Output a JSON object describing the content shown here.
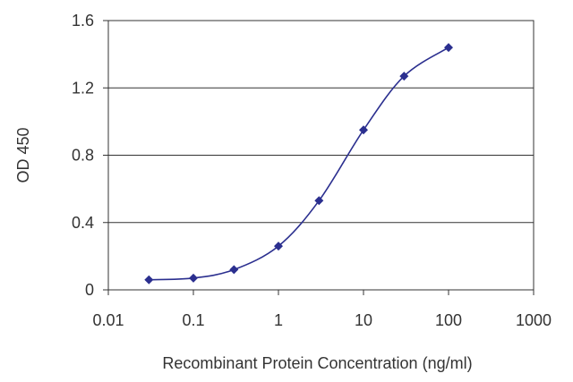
{
  "chart_data": {
    "type": "line",
    "title": "",
    "xlabel": "Recombinant Protein Concentration (ng/ml)",
    "ylabel": "OD 450",
    "xscale": "log",
    "xlim": [
      0.01,
      1000
    ],
    "ylim": [
      0,
      1.6
    ],
    "xticks": [
      0.01,
      0.1,
      1,
      10,
      100,
      1000
    ],
    "xtick_labels": [
      "0.01",
      "0.1",
      "1",
      "10",
      "100",
      "1000"
    ],
    "yticks": [
      0,
      0.4,
      0.8,
      1.2,
      1.6
    ],
    "ytick_labels": [
      "0",
      "0.4",
      "0.8",
      "1.2",
      "1.6"
    ],
    "grid": "horizontal",
    "legend": "none",
    "series": [
      {
        "x": [
          0.03,
          0.1,
          0.3,
          1,
          3,
          10,
          30,
          100
        ],
        "y": [
          0.06,
          0.07,
          0.12,
          0.26,
          0.53,
          0.95,
          1.27,
          1.44
        ],
        "color": "#2b2f8f"
      }
    ]
  }
}
